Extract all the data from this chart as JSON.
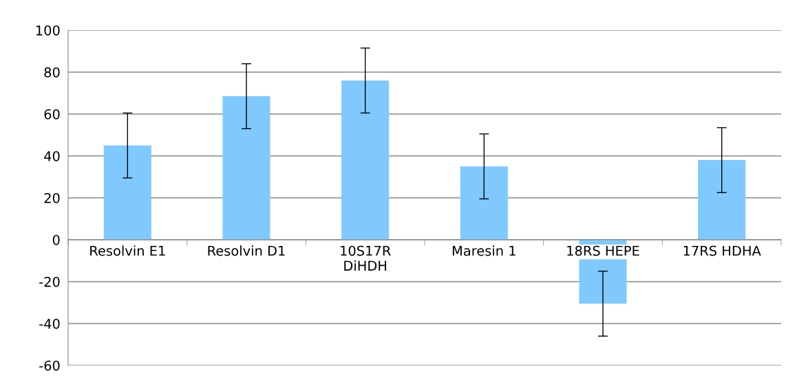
{
  "chart_data": {
    "type": "bar",
    "categories": [
      "Resolvin E1",
      "Resolvin D1",
      "10S17R DiHDH",
      "Maresin 1",
      "18RS HEPE",
      "17RS HDHA"
    ],
    "values": [
      45,
      68.5,
      76,
      35,
      -30.5,
      38
    ],
    "errors": [
      15.5,
      15.5,
      15.5,
      15.5,
      15.5,
      15.5
    ],
    "color": "#7fc9ff",
    "ylim": [
      -60,
      100
    ],
    "yticks": [
      -60,
      -40,
      -20,
      0,
      20,
      40,
      60,
      80,
      100
    ],
    "grid": "y"
  }
}
